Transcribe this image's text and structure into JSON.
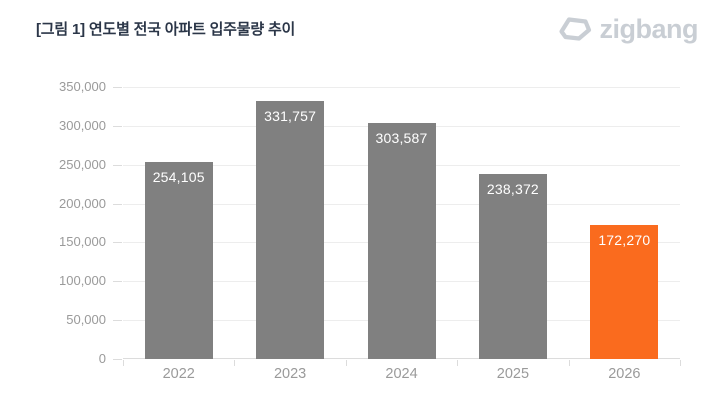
{
  "header": {
    "title": "[그림 1] 연도별 전국 아파트 입주물량 추이",
    "logo_text": "zigbang",
    "logo_icon": "zigbang-gem-icon"
  },
  "chart_data": {
    "type": "bar",
    "title": "[그림 1] 연도별 전국 아파트 입주물량 추이",
    "categories": [
      "2022",
      "2023",
      "2024",
      "2025",
      "2026"
    ],
    "values": [
      254105,
      331757,
      303587,
      238372,
      172270
    ],
    "value_labels": [
      "254,105",
      "331,757",
      "303,587",
      "238,372",
      "172,270"
    ],
    "bar_colors": [
      "#808080",
      "#808080",
      "#808080",
      "#808080",
      "#fa6b1e"
    ],
    "highlight_index": 4,
    "xlabel": "",
    "ylabel": "",
    "ylim": [
      0,
      350000
    ],
    "y_tick_step": 50000,
    "y_tick_labels": [
      "0",
      "50,000",
      "100,000",
      "150,000",
      "200,000",
      "250,000",
      "300,000",
      "350,000"
    ],
    "grid": true,
    "legend": false
  },
  "colors": {
    "bar_gray": "#808080",
    "bar_orange": "#fa6b1e",
    "title_text": "#2b3648",
    "axis_text": "#9a9a9a",
    "value_text": "#ffffff",
    "gridline": "#ededed",
    "axis_line": "#dcdcdc",
    "logo": "#c9ced4",
    "background": "#ffffff"
  }
}
